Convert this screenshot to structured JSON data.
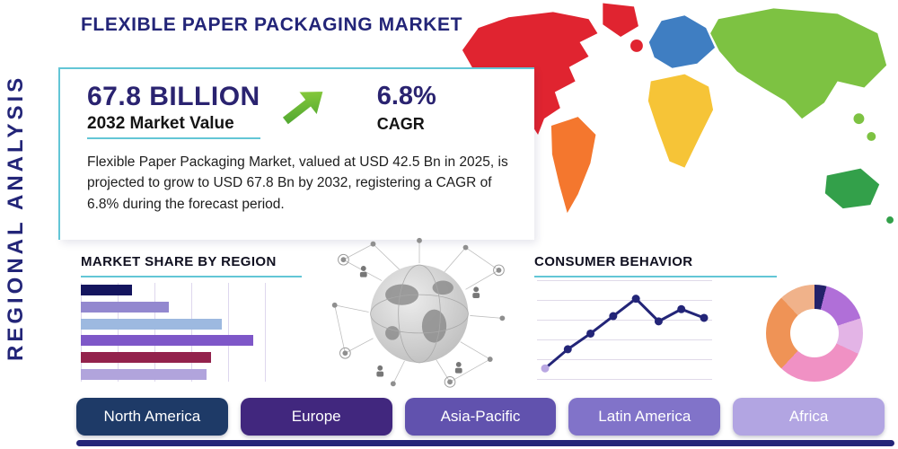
{
  "header": {
    "title": "FLEXIBLE PAPER PACKAGING MARKET"
  },
  "side_label": "REGIONAL ANALYSIS",
  "highlight": {
    "market_value": "67.8 BILLION",
    "market_value_caption": "2032 Market Value",
    "cagr_value": "6.8%",
    "cagr_caption": "CAGR",
    "description": "Flexible Paper Packaging Market, valued at USD 42.5 Bn in 2025, is projected to grow to USD 67.8 Bn by 2032, registering a CAGR of 6.8% during the forecast period."
  },
  "sections": {
    "market_share_title": "MARKET SHARE BY REGION",
    "consumer_behavior_title": "CONSUMER BEHAVIOR"
  },
  "region_buttons": [
    {
      "label": "North America",
      "color": "#1e3a67"
    },
    {
      "label": "Europe",
      "color": "#41277e"
    },
    {
      "label": "Asia-Pacific",
      "color": "#6152ae"
    },
    {
      "label": "Latin America",
      "color": "#8173c9"
    },
    {
      "label": "Africa",
      "color": "#b2a5e2"
    }
  ],
  "map": {
    "regions": [
      {
        "name": "north-america",
        "color": "#e02430"
      },
      {
        "name": "greenland",
        "color": "#e02430"
      },
      {
        "name": "south-america",
        "color": "#f4772e"
      },
      {
        "name": "europe",
        "color": "#3f7ec2"
      },
      {
        "name": "africa",
        "color": "#f6c437"
      },
      {
        "name": "asia",
        "color": "#7dc242"
      },
      {
        "name": "australia",
        "color": "#33a04a"
      },
      {
        "name": "united-kingdom",
        "color": "#e02430"
      }
    ]
  },
  "colors": {
    "accent_teal": "#63c6d6",
    "navy": "#232578",
    "arrow_green": "#6abf3a"
  },
  "chart_data": [
    {
      "type": "bar",
      "title": "MARKET SHARE BY REGION",
      "orientation": "horizontal",
      "categories": [
        "region-1",
        "region-2",
        "region-3",
        "region-4",
        "region-5",
        "region-6"
      ],
      "values": [
        23,
        40,
        64,
        78,
        59,
        57
      ],
      "colors": [
        "#14155e",
        "#9388cf",
        "#9db9e0",
        "#7e57c8",
        "#93224c",
        "#b1a4dc"
      ],
      "xlim": [
        0,
        100
      ],
      "grid": true
    },
    {
      "type": "line",
      "title": "CONSUMER BEHAVIOR",
      "x": [
        1,
        2,
        3,
        4,
        5,
        6,
        7,
        8
      ],
      "values": [
        8,
        30,
        48,
        68,
        88,
        62,
        76,
        66
      ],
      "ylim": [
        0,
        100
      ],
      "color": "#232578",
      "first_marker_color": "#b9a7e2",
      "grid": true
    },
    {
      "type": "pie",
      "title": "regional-share-donut",
      "donut": true,
      "slices": [
        {
          "label": "slice-navy",
          "value": 4,
          "color": "#23226a"
        },
        {
          "label": "slice-violet",
          "value": 16,
          "color": "#b06fd8"
        },
        {
          "label": "slice-lavender",
          "value": 12,
          "color": "#e3b4e6"
        },
        {
          "label": "slice-pink",
          "value": 30,
          "color": "#f091c4"
        },
        {
          "label": "slice-orange",
          "value": 26,
          "color": "#ef9356"
        },
        {
          "label": "slice-salmon",
          "value": 12,
          "color": "#f0b28a"
        }
      ]
    }
  ]
}
